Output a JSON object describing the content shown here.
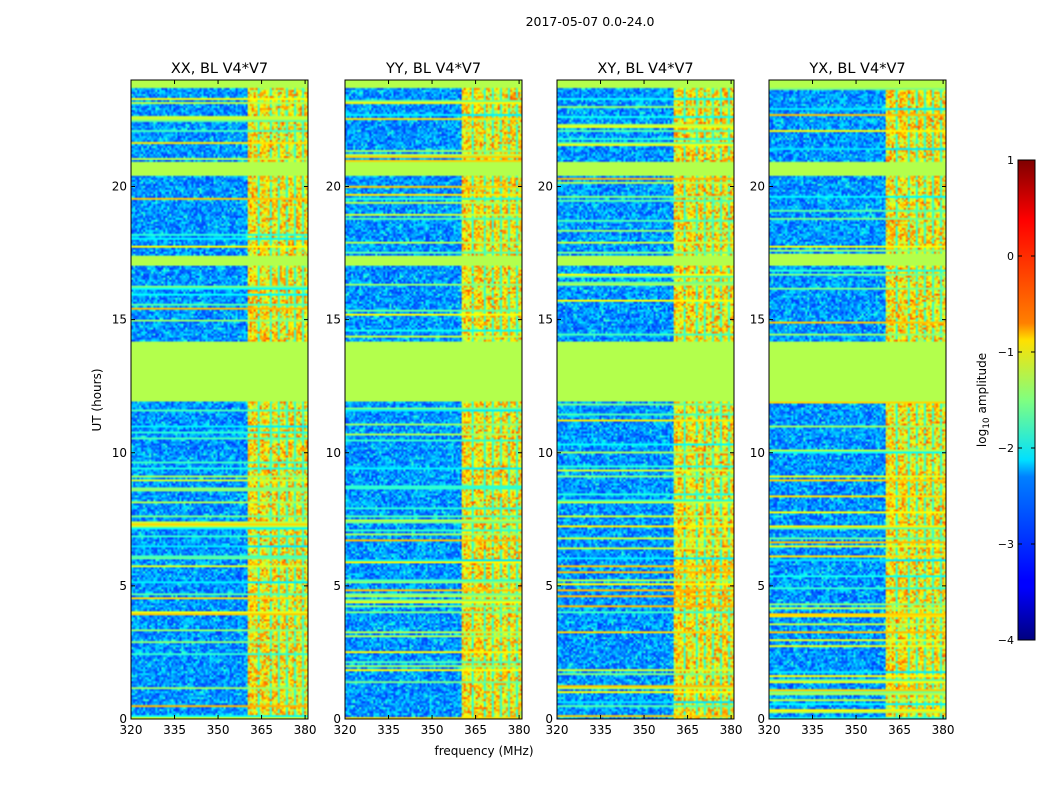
{
  "chart_data": {
    "type": "heatmap",
    "suptitle": "2017-05-07 0.0-24.0",
    "shared_xlabel": "frequency (MHz)",
    "shared_ylabel": "UT (hours)",
    "xlim": [
      320,
      381
    ],
    "ylim": [
      0,
      24
    ],
    "xticks": [
      320,
      335,
      350,
      365,
      380
    ],
    "yticks": [
      0,
      5,
      10,
      15,
      20
    ],
    "panels": [
      {
        "title": "XX, BL V4*V7",
        "pol": "XX"
      },
      {
        "title": "YY, BL V4*V7",
        "pol": "YY"
      },
      {
        "title": "XY, BL V4*V7",
        "pol": "XY"
      },
      {
        "title": "YX, BL V4*V7",
        "pol": "YX"
      }
    ],
    "rfi_band_mhz": [
      360,
      381
    ],
    "flagged_uth": [
      [
        11.9,
        14.2
      ],
      [
        20.4,
        20.95
      ],
      [
        17.0,
        17.4
      ],
      [
        23.7,
        24.0
      ]
    ],
    "colorbar": {
      "label": "log10 amplitude",
      "label_main": "log",
      "label_sub": "10",
      "label_rest": " amplitude",
      "min": -4,
      "max": 1,
      "ticks": [
        -4,
        -3,
        -2,
        -1,
        0,
        1
      ],
      "tick_labels": [
        "−4",
        "−3",
        "−2",
        "−1",
        "0",
        "1"
      ],
      "colormap": "jet"
    }
  }
}
